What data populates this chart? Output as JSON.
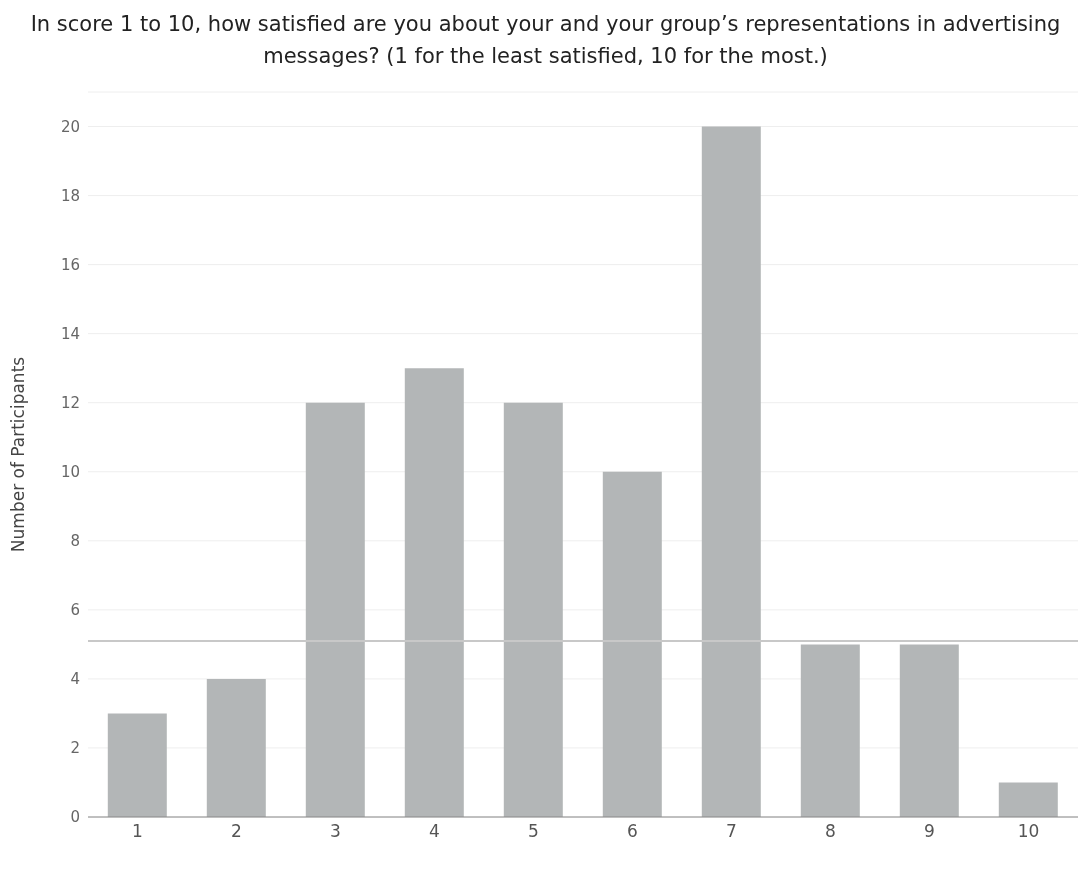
{
  "chart_data": {
    "type": "bar",
    "title": "In score 1 to 10, how satisfied are you about your and your group’s representations in advertising messages? (1 for the least satisfied, 10 for the most.)",
    "ylabel": "Number of Participants",
    "categories": [
      "1",
      "2",
      "3",
      "4",
      "5",
      "6",
      "7",
      "8",
      "9",
      "10"
    ],
    "values": [
      3,
      4,
      12,
      13,
      12,
      10,
      20,
      5,
      5,
      1
    ],
    "color": "#b3b6b7",
    "ylim": [
      0,
      21
    ],
    "yticks": [
      0,
      2,
      4,
      6,
      8,
      10,
      12,
      14,
      16,
      18,
      20
    ],
    "grid": "y",
    "ref_lines": [
      {
        "axis": "y",
        "value": 5.1,
        "color": "#c8c8c8"
      }
    ]
  }
}
